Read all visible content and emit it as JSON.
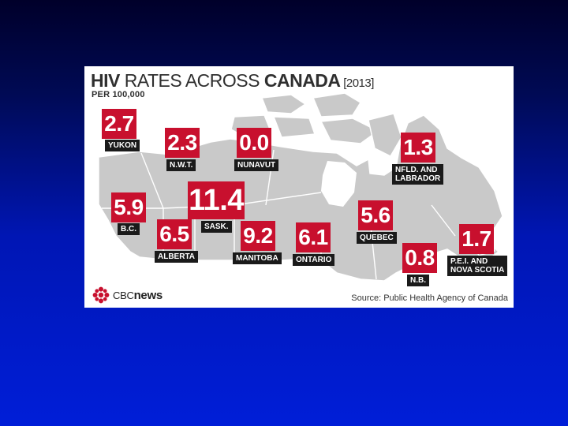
{
  "slide": {
    "background": "#0016b4"
  },
  "infographic": {
    "title_bold_1": "HIV",
    "title_light": " RATES ACROSS ",
    "title_bold_2": "CANADA",
    "title_year": " [2013]",
    "subtitle": "PER 100,000",
    "accent_color": "#c8102e",
    "label_color": "#1a1a1a",
    "regions": [
      {
        "key": "yukon",
        "value": "2.7",
        "label": "YUKON"
      },
      {
        "key": "nwt",
        "value": "2.3",
        "label": "N.W.T."
      },
      {
        "key": "nunavut",
        "value": "0.0",
        "label": "NUNAVUT"
      },
      {
        "key": "nfld",
        "value": "1.3",
        "label": "NFLD. AND\nLABRADOR"
      },
      {
        "key": "bc",
        "value": "5.9",
        "label": "B.C."
      },
      {
        "key": "sask",
        "value": "11.4",
        "label": "SASK."
      },
      {
        "key": "alberta",
        "value": "6.5",
        "label": "ALBERTA"
      },
      {
        "key": "manitoba",
        "value": "9.2",
        "label": "MANITOBA"
      },
      {
        "key": "ontario",
        "value": "6.1",
        "label": "ONTARIO"
      },
      {
        "key": "quebec",
        "value": "5.6",
        "label": "QUEBEC"
      },
      {
        "key": "nb",
        "value": "0.8",
        "label": "N.B."
      },
      {
        "key": "pei_ns",
        "value": "1.7",
        "label": "P.E.I. AND\nNOVA SCOTIA"
      }
    ],
    "logo": {
      "icon": "cbc-gem-icon",
      "cbc": "CBC",
      "news": "news"
    },
    "source": "Source: Public Health Agency of Canada"
  }
}
